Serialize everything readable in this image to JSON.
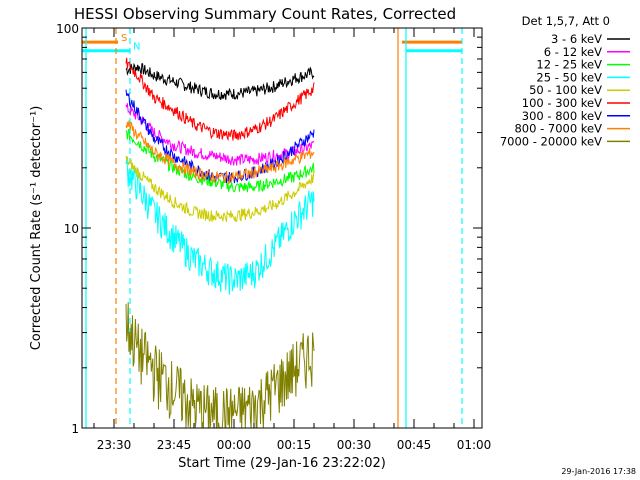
{
  "chart_data": {
    "type": "line",
    "title": "HESSI Observing Summary Count Rates, Corrected",
    "xlabel": "Start Time (29-Jan-16 23:22:02)",
    "ylabel": "Corrected Count Rate (s⁻¹ detector⁻¹)",
    "footer_date": "29-Jan-2016 17:38",
    "legend_title": "Det 1,5,7, Att 0",
    "legend_position": "right",
    "y_scale": "log",
    "ylim": [
      1,
      100
    ],
    "y_ticks": [
      {
        "value": 1,
        "label": "1"
      },
      {
        "value": 10,
        "label": "10"
      },
      {
        "value": 100,
        "label": "100"
      }
    ],
    "xlim_minutes": [
      -38,
      62
    ],
    "x_ticks": [
      {
        "minute": -30,
        "label": "23:30"
      },
      {
        "minute": -15,
        "label": "23:45"
      },
      {
        "minute": 0,
        "label": "00:00"
      },
      {
        "minute": 15,
        "label": "00:15"
      },
      {
        "minute": 30,
        "label": "00:30"
      },
      {
        "minute": 45,
        "label": "00:45"
      },
      {
        "minute": 60,
        "label": "01:00"
      }
    ],
    "series": [
      {
        "name": "3 - 6 keV",
        "color": "#000000",
        "x": [
          -27,
          -24,
          -20,
          -15,
          -10,
          -5,
          0,
          5,
          10,
          15,
          20
        ],
        "y": [
          62,
          64,
          58,
          54,
          50,
          47,
          47,
          48,
          51,
          56,
          60
        ]
      },
      {
        "name": "6 - 12 keV",
        "color": "#ff00ff",
        "x": [
          -27,
          -24,
          -20,
          -15,
          -10,
          -5,
          0,
          5,
          10,
          15,
          20
        ],
        "y": [
          40,
          36,
          30,
          26,
          24,
          23,
          22,
          22,
          23,
          24,
          26
        ]
      },
      {
        "name": "12 - 25 keV",
        "color": "#00ff00",
        "x": [
          -27,
          -24,
          -20,
          -15,
          -10,
          -5,
          0,
          5,
          10,
          15,
          20
        ],
        "y": [
          30,
          27,
          23,
          20,
          18,
          17,
          16,
          16,
          17,
          18,
          20
        ]
      },
      {
        "name": "25 - 50 keV",
        "color": "#00ffff",
        "x": [
          -27,
          -24,
          -20,
          -15,
          -10,
          -5,
          0,
          5,
          10,
          15,
          20
        ],
        "y": [
          20,
          16,
          12,
          9,
          7,
          6,
          5.5,
          6,
          8,
          11,
          14
        ]
      },
      {
        "name": "50 - 100 keV",
        "color": "#cccc00",
        "x": [
          -27,
          -24,
          -20,
          -15,
          -10,
          -5,
          0,
          5,
          10,
          15,
          20
        ],
        "y": [
          22,
          19,
          16,
          13.5,
          12,
          11.5,
          11.5,
          12,
          13,
          15,
          18
        ]
      },
      {
        "name": "100 - 300 keV",
        "color": "#ff0000",
        "x": [
          -27,
          -24,
          -20,
          -15,
          -10,
          -5,
          0,
          5,
          10,
          15,
          20
        ],
        "y": [
          67,
          58,
          45,
          39,
          33,
          30,
          29,
          31,
          35,
          42,
          50
        ]
      },
      {
        "name": "300 - 800 keV",
        "color": "#0000ff",
        "x": [
          -27,
          -24,
          -20,
          -15,
          -10,
          -5,
          0,
          5,
          10,
          15,
          20
        ],
        "y": [
          47,
          38,
          28,
          23,
          20,
          18,
          18,
          19,
          21,
          25,
          30
        ]
      },
      {
        "name": "800 - 7000 keV",
        "color": "#ff8000",
        "x": [
          -27,
          -24,
          -20,
          -15,
          -10,
          -5,
          0,
          5,
          10,
          15,
          20
        ],
        "y": [
          34,
          29,
          24,
          21,
          19,
          18,
          18,
          19,
          20,
          22,
          24
        ]
      },
      {
        "name": "7000 - 20000 keV",
        "color": "#808000",
        "x": [
          -27,
          -24,
          -20,
          -15,
          -10,
          -5,
          0,
          5,
          10,
          15,
          20
        ],
        "y": [
          3.5,
          2.5,
          2,
          1.6,
          1.3,
          1.2,
          1.2,
          1.3,
          1.6,
          2,
          2.5
        ]
      }
    ],
    "flag_bars": [
      {
        "label": "S",
        "color": "#ff8000",
        "segments": [
          [
            -38,
            -29
          ],
          [
            42,
            57
          ]
        ],
        "level": 85
      },
      {
        "label": "N",
        "color": "#00ffff",
        "segments": [
          [
            -38,
            -26
          ],
          [
            43,
            57
          ]
        ],
        "level": 77
      }
    ],
    "vertical_lines": [
      {
        "minute": -37,
        "color": "#00ffff",
        "style": "solid"
      },
      {
        "minute": -29.5,
        "color": "#ff8000",
        "style": "dashed"
      },
      {
        "minute": -26,
        "color": "#00ffff",
        "style": "dashed"
      },
      {
        "minute": 41,
        "color": "#ff8000",
        "style": "solid"
      },
      {
        "minute": 43,
        "color": "#00ffff",
        "style": "solid"
      },
      {
        "minute": 57,
        "color": "#00ffff",
        "style": "dashed"
      }
    ]
  }
}
